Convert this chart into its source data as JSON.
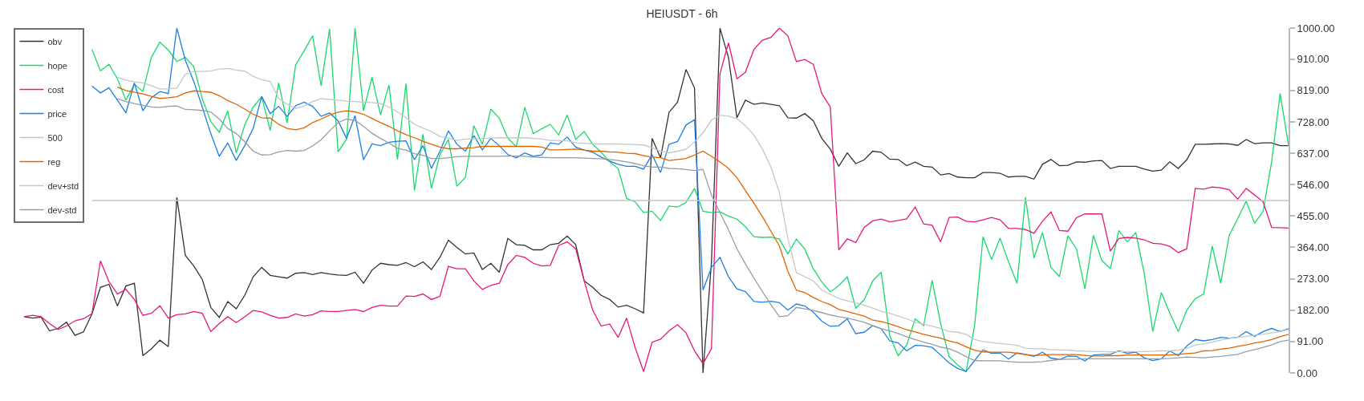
{
  "chart_data": {
    "type": "line",
    "title": "HEIUSDT - 6h",
    "categories": [
      null,
      null,
      null,
      null,
      null,
      null,
      null,
      null,
      null,
      null,
      null,
      null,
      null,
      null,
      null,
      null,
      null,
      null,
      null,
      null,
      null,
      null,
      null,
      null,
      null,
      null,
      null,
      null,
      null,
      null,
      null,
      null,
      null,
      null,
      null,
      null,
      null,
      null,
      null,
      null,
      null,
      null,
      null,
      null,
      null,
      null,
      null,
      null,
      null,
      null,
      null,
      null,
      null,
      null,
      null,
      null,
      null,
      null,
      null,
      null,
      null,
      null,
      null,
      null,
      null,
      null,
      null,
      null,
      null,
      null,
      null,
      null,
      null,
      null,
      null,
      null,
      null,
      null,
      null,
      null,
      null,
      null,
      null,
      null,
      null,
      null,
      null,
      null,
      null,
      null,
      null,
      null,
      null,
      null,
      null,
      null,
      null,
      null,
      null,
      null,
      null,
      null,
      null,
      null,
      null,
      null,
      null,
      null,
      null,
      null,
      null,
      null,
      null,
      null,
      null,
      null,
      null,
      null,
      null,
      null,
      null,
      null,
      null,
      null,
      null,
      null,
      null,
      null,
      null,
      null,
      null,
      null,
      null,
      null,
      null,
      null,
      null,
      null,
      null,
      null,
      null,
      null,
      null,
      null,
      null,
      null,
      null,
      null,
      null,
      null
    ],
    "series": [
      {
        "name": "obv",
        "color": "#333333",
        "values": [
          163,
          159,
          162,
          122,
          129,
          147,
          109,
          119,
          171,
          248,
          257,
          194,
          252,
          260,
          50,
          70,
          95,
          76,
          509,
          341,
          310,
          271,
          190,
          161,
          207,
          186,
          225,
          279,
          306,
          283,
          279,
          275,
          289,
          291,
          285,
          291,
          287,
          284,
          283,
          292,
          260,
          298,
          318,
          314,
          312,
          320,
          308,
          322,
          300,
          335,
          385,
          364,
          345,
          348,
          300,
          318,
          292,
          390,
          372,
          370,
          357,
          357,
          372,
          376,
          397,
          372,
          267,
          248,
          225,
          213,
          191,
          196,
          186,
          174,
          680,
          624,
          756,
          785,
          880,
          826,
          0,
          322,
          1000,
          915,
          740,
          791,
          779,
          783,
          779,
          775,
          740,
          739,
          752,
          731,
          680,
          649,
          599,
          638,
          607,
          618,
          643,
          640,
          620,
          619,
          601,
          611,
          599,
          597,
          574,
          578,
          568,
          566,
          566,
          581,
          581,
          579,
          568,
          570,
          570,
          562,
          605,
          619,
          601,
          602,
          612,
          611,
          615,
          616,
          593,
          599,
          599,
          599,
          591,
          585,
          588,
          612,
          593,
          618,
          663,
          663,
          664,
          665,
          664,
          660,
          677,
          665,
          667,
          667,
          659,
          659
        ]
      },
      {
        "name": "hope",
        "color": "#19d96b",
        "values": [
          null,
          null,
          null,
          null,
          null,
          null,
          null,
          null,
          938,
          876,
          895,
          853,
          791,
          837,
          816,
          915,
          959,
          936,
          903,
          915,
          888,
          795,
          729,
          698,
          760,
          638,
          719,
          771,
          801,
          703,
          841,
          725,
          893,
          934,
          978,
          833,
          998,
          641,
          678,
          1000,
          760,
          857,
          748,
          835,
          619,
          839,
          529,
          692,
          535,
          633,
          677,
          541,
          567,
          717,
          663,
          765,
          738,
          681,
          656,
          770,
          694,
          708,
          721,
          690,
          748,
          677,
          700,
          663,
          640,
          612,
          593,
          506,
          496,
          465,
          469,
          442,
          484,
          481,
          494,
          535,
          469,
          465,
          467,
          455,
          446,
          424,
          395,
          393,
          394,
          388,
          345,
          388,
          359,
          302,
          264,
          235,
          253,
          279,
          188,
          212,
          267,
          292,
          108,
          50,
          81,
          157,
          137,
          269,
          143,
          47,
          23,
          4,
          137,
          395,
          329,
          391,
          322,
          260,
          509,
          333,
          407,
          306,
          279,
          398,
          360,
          244,
          399,
          326,
          302,
          413,
          380,
          407,
          287,
          120,
          233,
          174,
          120,
          182,
          215,
          229,
          368,
          260,
          399,
          447,
          498,
          434,
          469,
          612,
          810,
          659
        ]
      },
      {
        "name": "cost",
        "color": "#e6197a",
        "values": [
          163,
          167,
          163,
          143,
          126,
          136,
          151,
          157,
          172,
          325,
          265,
          229,
          242,
          213,
          167,
          173,
          195,
          159,
          169,
          171,
          178,
          173,
          120,
          143,
          163,
          146,
          163,
          181,
          177,
          167,
          159,
          161,
          171,
          165,
          169,
          180,
          178,
          178,
          181,
          184,
          178,
          190,
          196,
          194,
          194,
          223,
          222,
          229,
          213,
          222,
          309,
          302,
          302,
          267,
          242,
          254,
          260,
          314,
          341,
          335,
          318,
          310,
          312,
          370,
          380,
          360,
          267,
          182,
          136,
          142,
          103,
          159,
          74,
          4,
          89,
          98,
          122,
          140,
          116,
          64,
          27,
          70,
          868,
          957,
          853,
          872,
          938,
          965,
          973,
          1000,
          977,
          903,
          909,
          895,
          810,
          771,
          357,
          389,
          378,
          422,
          441,
          446,
          438,
          442,
          447,
          481,
          432,
          428,
          380,
          451,
          452,
          440,
          438,
          444,
          451,
          444,
          419,
          419,
          416,
          405,
          440,
          467,
          413,
          411,
          450,
          461,
          461,
          461,
          353,
          390,
          393,
          391,
          386,
          376,
          374,
          367,
          349,
          360,
          535,
          533,
          539,
          537,
          531,
          504,
          535,
          516,
          496,
          422,
          421,
          420
        ]
      },
      {
        "name": "price",
        "color": "#1e7fe0",
        "values": [
          null,
          null,
          null,
          null,
          null,
          null,
          null,
          null,
          832,
          812,
          827,
          791,
          754,
          841,
          760,
          798,
          816,
          810,
          1000,
          907,
          845,
          771,
          694,
          628,
          667,
          616,
          659,
          709,
          802,
          752,
          773,
          744,
          775,
          785,
          773,
          744,
          754,
          731,
          680,
          746,
          618,
          664,
          659,
          669,
          672,
          673,
          618,
          659,
          593,
          643,
          702,
          663,
          643,
          688,
          647,
          680,
          659,
          633,
          624,
          638,
          628,
          632,
          667,
          663,
          684,
          655,
          646,
          640,
          626,
          614,
          605,
          599,
          599,
          591,
          633,
          581,
          663,
          671,
          719,
          734,
          240,
          306,
          335,
          279,
          244,
          236,
          207,
          205,
          208,
          204,
          182,
          200,
          194,
          176,
          150,
          135,
          137,
          157,
          114,
          118,
          137,
          128,
          93,
          87,
          64,
          80,
          79,
          74,
          52,
          29,
          13,
          4,
          36,
          67,
          57,
          58,
          40,
          58,
          54,
          48,
          60,
          43,
          39,
          49,
          48,
          35,
          52,
          54,
          54,
          64,
          57,
          60,
          44,
          36,
          41,
          64,
          50,
          78,
          97,
          93,
          97,
          103,
          101,
          103,
          120,
          106,
          120,
          129,
          120,
          128
        ]
      },
      {
        "name": "500",
        "color": "#c4c4c4",
        "values": [
          null,
          null,
          null,
          null,
          null,
          null,
          null,
          null,
          500,
          500,
          500,
          500,
          500,
          500,
          500,
          500,
          500,
          500,
          500,
          500,
          500,
          500,
          500,
          500,
          500,
          500,
          500,
          500,
          500,
          500,
          500,
          500,
          500,
          500,
          500,
          500,
          500,
          500,
          500,
          500,
          500,
          500,
          500,
          500,
          500,
          500,
          500,
          500,
          500,
          500,
          500,
          500,
          500,
          500,
          500,
          500,
          500,
          500,
          500,
          500,
          500,
          500,
          500,
          500,
          500,
          500,
          500,
          500,
          500,
          500,
          500,
          500,
          500,
          500,
          500,
          500,
          500,
          500,
          500,
          500,
          500,
          500,
          500,
          500,
          500,
          500,
          500,
          500,
          500,
          500,
          500,
          500,
          500,
          500,
          500,
          500,
          500,
          500,
          500,
          500,
          500,
          500,
          500,
          500,
          500,
          500,
          500,
          500,
          500,
          500,
          500,
          500,
          500,
          500,
          500,
          500,
          500,
          500,
          500,
          500,
          500,
          500,
          500,
          500,
          500,
          500,
          500,
          500,
          500,
          500,
          500,
          500,
          500,
          500,
          500,
          500,
          500,
          500,
          500,
          500,
          500,
          500,
          500,
          500,
          500,
          500,
          500,
          500,
          500,
          500
        ]
      },
      {
        "name": "reg",
        "color": "#e06400",
        "values": [
          null,
          null,
          null,
          null,
          null,
          null,
          null,
          null,
          null,
          null,
          null,
          829,
          819,
          814,
          809,
          802,
          796,
          798,
          801,
          812,
          818,
          816,
          814,
          804,
          790,
          779,
          765,
          750,
          740,
          739,
          721,
          709,
          705,
          711,
          726,
          736,
          748,
          756,
          760,
          757,
          750,
          738,
          726,
          715,
          702,
          691,
          682,
          672,
          663,
          655,
          650,
          650,
          652,
          653,
          657,
          657,
          657,
          657,
          657,
          657,
          657,
          655,
          647,
          647,
          648,
          649,
          646,
          643,
          643,
          641,
          640,
          637,
          636,
          630,
          626,
          624,
          616,
          619,
          622,
          632,
          643,
          628,
          612,
          593,
          566,
          529,
          492,
          453,
          411,
          368,
          295,
          240,
          233,
          219,
          207,
          198,
          184,
          178,
          171,
          165,
          153,
          149,
          142,
          134,
          125,
          119,
          112,
          106,
          101,
          93,
          87,
          76,
          66,
          61,
          60,
          60,
          60,
          57,
          53,
          50,
          52,
          53,
          53,
          53,
          53,
          51,
          49,
          49,
          50,
          50,
          52,
          52,
          52,
          52,
          52,
          52,
          54,
          56,
          58,
          64,
          65,
          69,
          72,
          77,
          81,
          87,
          91,
          97,
          105,
          112
        ]
      },
      {
        "name": "dev+std",
        "color": "#c2c8cc",
        "values": [
          null,
          null,
          null,
          null,
          null,
          null,
          null,
          null,
          null,
          null,
          null,
          857,
          849,
          844,
          841,
          833,
          823,
          824,
          826,
          866,
          874,
          874,
          876,
          881,
          883,
          878,
          875,
          860,
          850,
          845,
          796,
          779,
          767,
          774,
          787,
          795,
          793,
          791,
          788,
          787,
          785,
          784,
          781,
          771,
          757,
          740,
          721,
          710,
          700,
          686,
          681,
          674,
          678,
          679,
          680,
          681,
          682,
          682,
          682,
          682,
          680,
          678,
          674,
          674,
          673,
          667,
          666,
          664,
          664,
          664,
          664,
          663,
          662,
          661,
          653,
          643,
          638,
          643,
          649,
          670,
          696,
          733,
          747,
          745,
          737,
          717,
          690,
          649,
          597,
          523,
          391,
          291,
          279,
          267,
          240,
          228,
          216,
          209,
          203,
          196,
          188,
          179,
          173,
          165,
          157,
          147,
          141,
          136,
          129,
          120,
          118,
          112,
          97,
          91,
          88,
          85,
          83,
          80,
          72,
          70,
          70,
          67,
          67,
          66,
          64,
          63,
          62,
          62,
          61,
          62,
          62,
          62,
          62,
          63,
          64,
          64,
          66,
          71,
          81,
          84,
          89,
          95,
          100,
          103,
          106,
          109,
          112,
          116,
          120,
          126
        ]
      },
      {
        "name": "dev-std",
        "color": "#959ea6",
        "values": [
          null,
          null,
          null,
          null,
          null,
          null,
          null,
          null,
          null,
          null,
          null,
          795,
          787,
          781,
          776,
          771,
          770,
          773,
          774,
          764,
          763,
          761,
          757,
          736,
          709,
          694,
          671,
          643,
          632,
          633,
          641,
          645,
          643,
          645,
          658,
          676,
          702,
          726,
          736,
          732,
          715,
          695,
          680,
          667,
          651,
          646,
          636,
          631,
          622,
          622,
          624,
          627,
          628,
          628,
          628,
          628,
          628,
          629,
          629,
          628,
          626,
          625,
          624,
          624,
          624,
          624,
          623,
          622,
          621,
          619,
          616,
          612,
          607,
          601,
          597,
          597,
          593,
          592,
          590,
          587,
          590,
          516,
          465,
          415,
          360,
          316,
          275,
          236,
          198,
          163,
          166,
          190,
          186,
          181,
          175,
          168,
          163,
          159,
          153,
          147,
          137,
          128,
          122,
          114,
          105,
          97,
          89,
          83,
          75,
          70,
          60,
          47,
          36,
          35,
          35,
          35,
          33,
          31,
          31,
          31,
          33,
          36,
          39,
          40,
          40,
          41,
          41,
          41,
          41,
          41,
          41,
          41,
          41,
          41,
          41,
          42,
          44,
          46,
          45,
          44,
          46,
          48,
          51,
          54,
          62,
          68,
          74,
          81,
          91,
          95
        ]
      }
    ],
    "ylim": [
      0,
      1000
    ],
    "yticks": [
      {
        "value": 0,
        "label": "0.00"
      },
      {
        "value": 91,
        "label": "91.00"
      },
      {
        "value": 182,
        "label": "182.00"
      },
      {
        "value": 273,
        "label": "273.00"
      },
      {
        "value": 364,
        "label": "364.00"
      },
      {
        "value": 455,
        "label": "455.00"
      },
      {
        "value": 546,
        "label": "546.00"
      },
      {
        "value": 637,
        "label": "637.00"
      },
      {
        "value": 728,
        "label": "728.00"
      },
      {
        "value": 819,
        "label": "819.00"
      },
      {
        "value": 910,
        "label": "910.00"
      },
      {
        "value": 1000,
        "label": "1000.00"
      }
    ],
    "grid": false,
    "legend": "top left",
    "tick_labels": "y",
    "line_style": "solid"
  }
}
